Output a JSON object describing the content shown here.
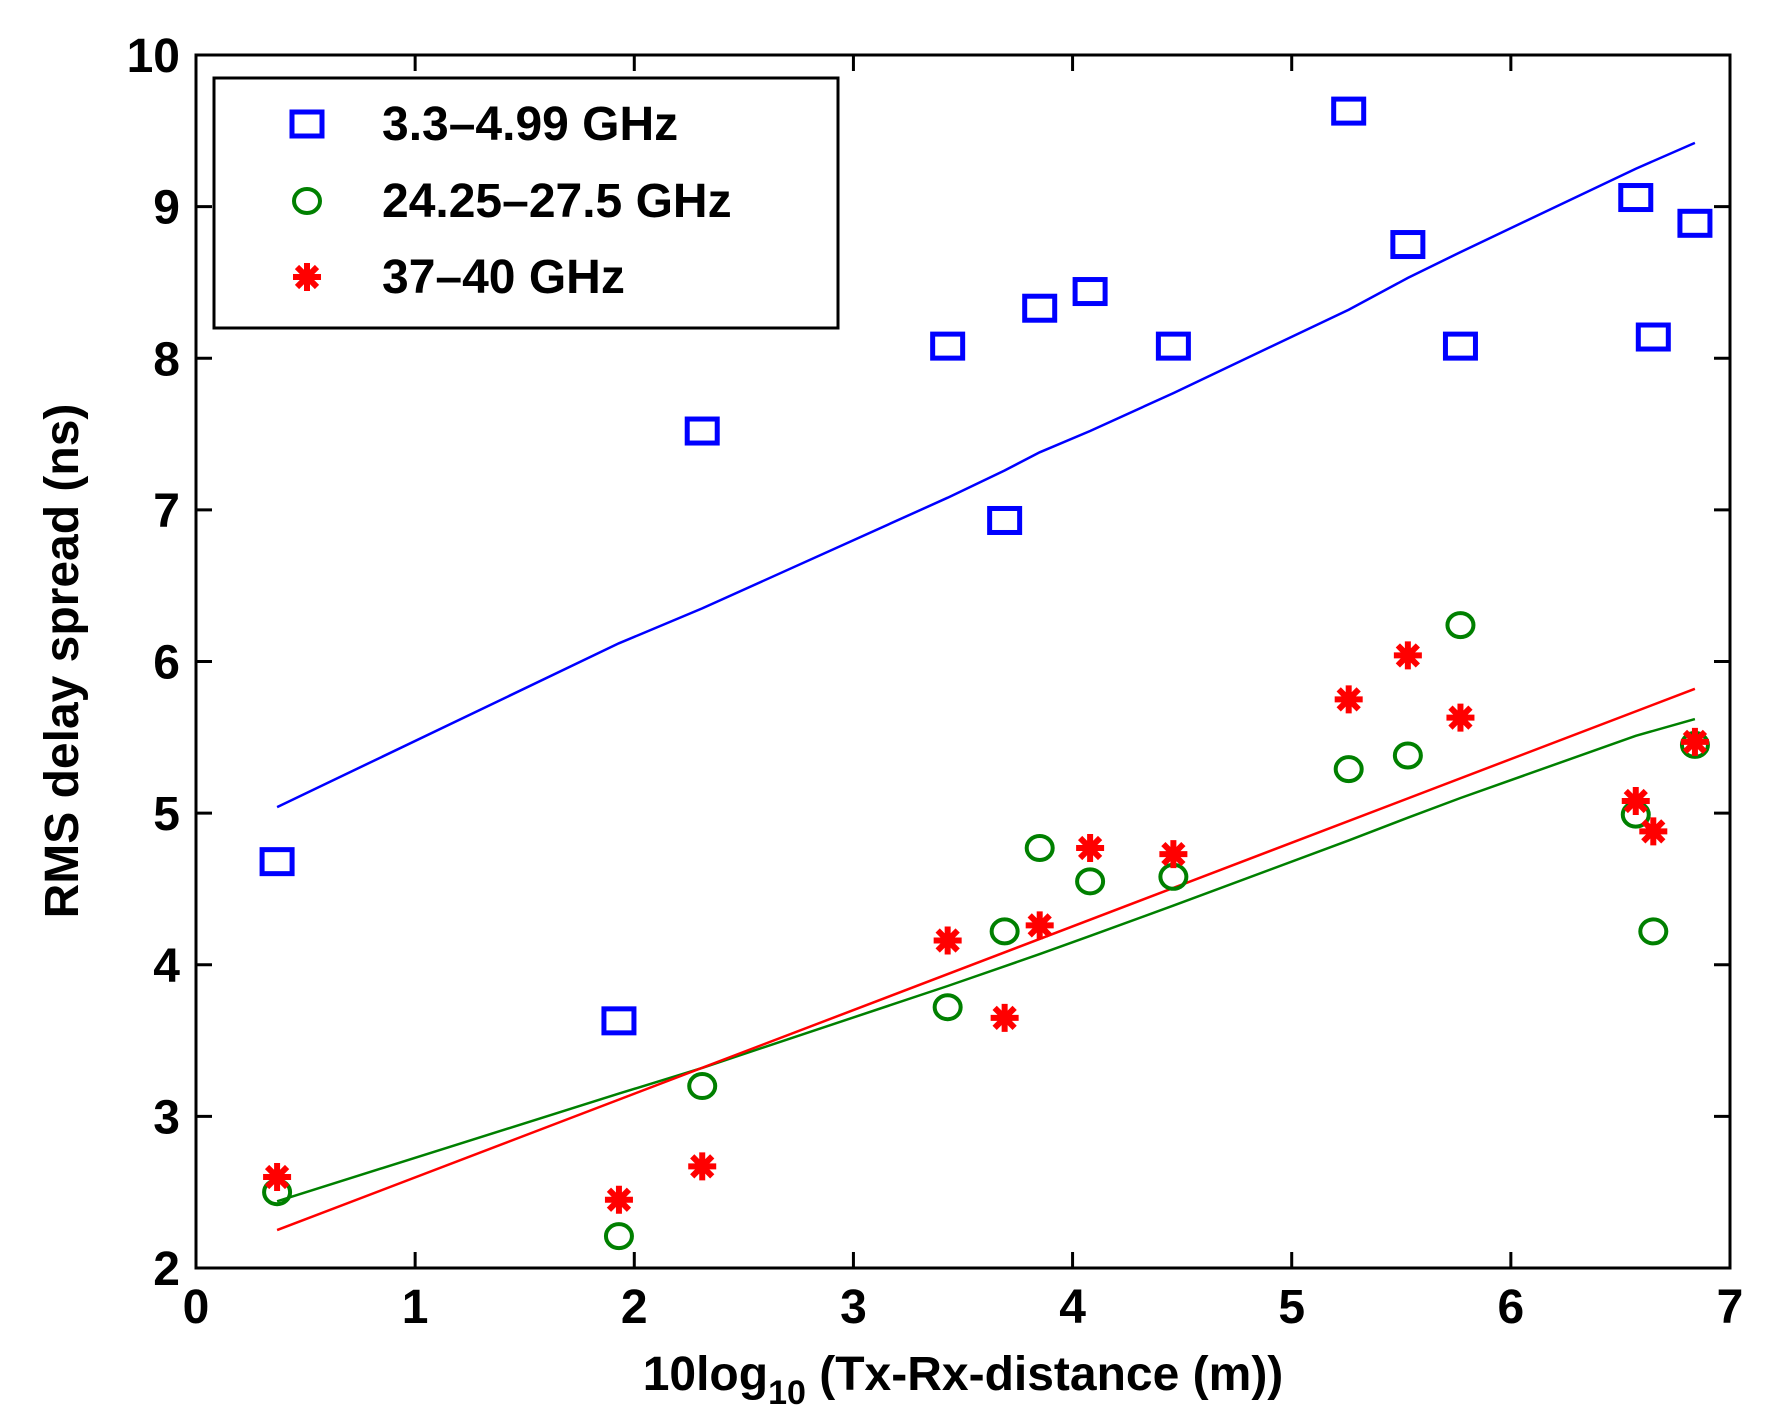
{
  "chart_data": {
    "type": "scatter",
    "title": "",
    "xlabel_prefix": "10log",
    "xlabel_sub": "10",
    "xlabel_suffix": " (Tx-Rx-distance (m))",
    "ylabel": "RMS delay spread (ns)",
    "xlim": [
      0,
      7
    ],
    "ylim": [
      2,
      10
    ],
    "xticks": [
      0,
      1,
      2,
      3,
      4,
      5,
      6,
      7
    ],
    "yticks": [
      2,
      3,
      4,
      5,
      6,
      7,
      8,
      9,
      10
    ],
    "legend_position": "top-left",
    "series": [
      {
        "name": "3.3–4.99 GHz",
        "marker": "square",
        "color": "#0000ff",
        "x": [
          0.37,
          1.93,
          2.31,
          3.43,
          3.69,
          3.85,
          4.08,
          4.46,
          5.26,
          5.53,
          5.77,
          6.57,
          6.65,
          6.84
        ],
        "y": [
          4.68,
          3.63,
          7.52,
          8.08,
          6.93,
          8.33,
          8.44,
          8.08,
          9.63,
          8.75,
          8.08,
          9.06,
          8.14,
          8.89
        ],
        "fit": {
          "x": [
            0.37,
            1.93,
            2.31,
            3.43,
            3.69,
            3.85,
            4.08,
            4.46,
            5.26,
            5.53,
            5.77,
            6.57,
            6.84
          ],
          "y": [
            5.04,
            6.12,
            6.35,
            7.08,
            7.26,
            7.38,
            7.52,
            7.77,
            8.32,
            8.53,
            8.7,
            9.25,
            9.42
          ]
        }
      },
      {
        "name": "24.25–27.5 GHz",
        "marker": "circle",
        "color": "#008000",
        "x": [
          0.37,
          1.93,
          2.31,
          3.43,
          3.69,
          3.85,
          4.08,
          4.46,
          5.26,
          5.53,
          5.77,
          6.57,
          6.65,
          6.84
        ],
        "y": [
          2.5,
          2.21,
          3.2,
          3.72,
          4.22,
          4.77,
          4.55,
          4.58,
          5.29,
          5.38,
          6.24,
          4.99,
          4.22,
          5.45
        ],
        "fit": {
          "x": [
            0.37,
            1.93,
            2.31,
            3.43,
            3.69,
            3.85,
            4.08,
            4.46,
            5.26,
            5.53,
            5.77,
            6.57,
            6.84
          ],
          "y": [
            2.44,
            3.15,
            3.32,
            3.86,
            3.99,
            4.07,
            4.19,
            4.39,
            4.82,
            4.97,
            5.1,
            5.51,
            5.62
          ]
        }
      },
      {
        "name": "37–40 GHz",
        "marker": "star",
        "color": "#ff0000",
        "x": [
          0.37,
          1.93,
          2.31,
          3.43,
          3.69,
          3.85,
          4.08,
          4.46,
          5.26,
          5.53,
          5.77,
          6.57,
          6.65,
          6.84
        ],
        "y": [
          2.6,
          2.45,
          2.67,
          4.16,
          3.65,
          4.26,
          4.77,
          4.73,
          5.75,
          6.04,
          5.63,
          5.08,
          4.88,
          5.47
        ],
        "fit": {
          "x": [
            0.37,
            6.84
          ],
          "y": [
            2.25,
            5.82
          ]
        }
      }
    ]
  }
}
